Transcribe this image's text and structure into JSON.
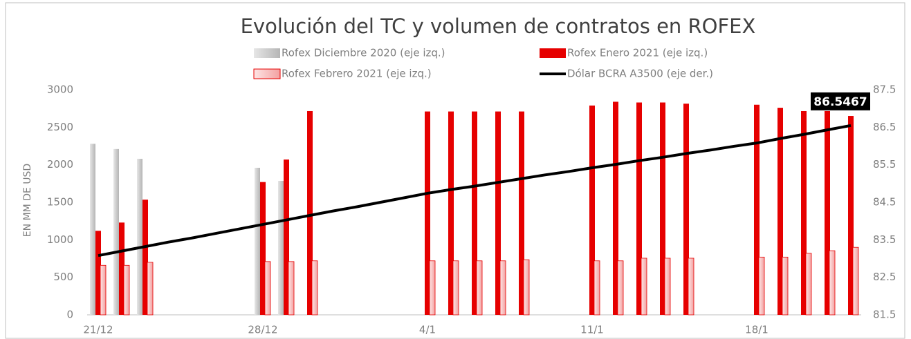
{
  "chart_data": {
    "type": "bar",
    "title": "Evolución del TC y volumen de contratos en ROFEX",
    "y_label": "EN MM DE USD",
    "categories": [
      "21/12",
      null,
      null,
      null,
      null,
      null,
      null,
      "28/12",
      null,
      null,
      null,
      null,
      null,
      null,
      "4/1",
      null,
      null,
      null,
      null,
      null,
      null,
      "11/1",
      null,
      null,
      null,
      null,
      null,
      null,
      "18/1",
      null,
      null,
      null,
      null
    ],
    "ylim": [
      0,
      3000
    ],
    "yticks": [
      0,
      500,
      1000,
      1500,
      2000,
      2500,
      3000
    ],
    "y2lim": [
      81.5,
      87.5
    ],
    "y2ticks": [
      81.5,
      82.5,
      83.5,
      84.5,
      85.5,
      86.5,
      87.5
    ],
    "series": [
      {
        "name": "Rofex Diciembre 2020 (eje izq.)",
        "type": "bar",
        "color": "#c8c8c8",
        "values": [
          2280,
          2210,
          2080,
          null,
          null,
          null,
          null,
          1960,
          1785,
          null,
          null,
          null,
          null,
          null,
          null,
          null,
          null,
          null,
          null,
          null,
          null,
          null,
          null,
          null,
          null,
          null,
          null,
          null,
          null,
          null,
          null,
          null,
          null
        ]
      },
      {
        "name": "Rofex Enero 2021 (eje izq.)",
        "type": "bar",
        "color": "#e60000",
        "values": [
          1120,
          1230,
          1535,
          null,
          null,
          null,
          null,
          1770,
          2070,
          2715,
          null,
          null,
          null,
          null,
          2710,
          2710,
          2710,
          2710,
          2710,
          null,
          null,
          2790,
          2840,
          2830,
          2830,
          2815,
          null,
          null,
          2800,
          2760,
          2715,
          2715,
          2650
        ]
      },
      {
        "name": "Rofex Febrero 2021 (eje izq.)",
        "type": "bar",
        "color": "#f7b5b5",
        "values": [
          660,
          660,
          700,
          null,
          null,
          null,
          null,
          710,
          710,
          720,
          null,
          null,
          null,
          null,
          720,
          720,
          720,
          720,
          735,
          null,
          null,
          720,
          720,
          755,
          755,
          755,
          null,
          null,
          770,
          770,
          820,
          855,
          900
        ]
      },
      {
        "name": "Dólar BCRA A3500 (eje der.)",
        "type": "line",
        "axis": "y2",
        "color": "#000000",
        "values": [
          83.08,
          83.2,
          83.32,
          83.44,
          83.55,
          83.67,
          83.79,
          83.91,
          84.03,
          84.15,
          84.27,
          84.38,
          84.5,
          84.62,
          84.74,
          84.84,
          84.93,
          85.03,
          85.13,
          85.23,
          85.32,
          85.42,
          85.51,
          85.61,
          85.7,
          85.8,
          85.89,
          85.99,
          86.08,
          86.2,
          86.31,
          86.43,
          86.5467
        ],
        "value_labels": [
          null,
          null,
          null,
          null,
          null,
          null,
          null,
          null,
          null,
          null,
          null,
          null,
          null,
          null,
          null,
          null,
          null,
          null,
          null,
          null,
          null,
          null,
          null,
          null,
          null,
          null,
          null,
          null,
          null,
          null,
          null,
          null,
          "86.5467"
        ]
      }
    ]
  }
}
